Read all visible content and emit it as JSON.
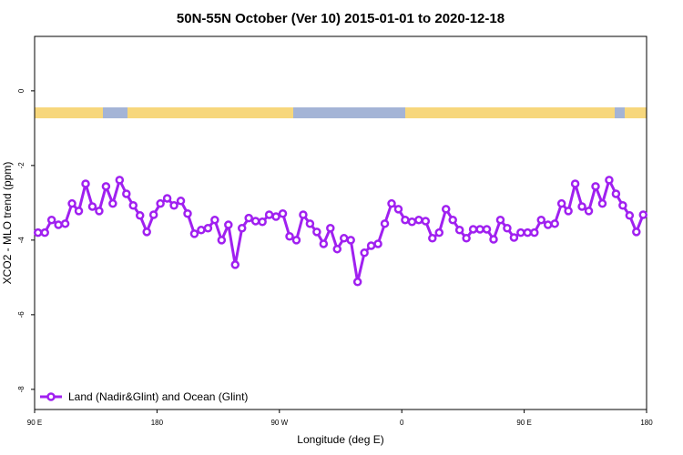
{
  "chart_data": {
    "type": "line",
    "title": "50N-55N October (Ver 10)   2015-01-01 to 2020-12-18",
    "x_label": "Longitude (deg E)",
    "y_label": "XCO2 - MLO trend (ppm)",
    "x": [
      92.5,
      97.5,
      102.5,
      107.5,
      112.5,
      117.5,
      122.5,
      127.5,
      132.5,
      137.5,
      142.5,
      147.5,
      152.5,
      157.5,
      162.5,
      167.5,
      172.5,
      177.5,
      182.5,
      187.5,
      192.5,
      197.5,
      202.5,
      207.5,
      212.5,
      217.5,
      222.5,
      227.5,
      232.5,
      237.5,
      242.5,
      247.5,
      252.5,
      257.5,
      262.5,
      267.5,
      272.5,
      277.5,
      282.5,
      287.5,
      292.5,
      297.5,
      302.5,
      307.5,
      312.5,
      317.5,
      322.5,
      327.5,
      332.5,
      337.5,
      342.5,
      347.5,
      352.5,
      357.5,
      362.5,
      367.5,
      372.5,
      377.5,
      382.5,
      387.5,
      392.5,
      397.5,
      402.5,
      407.5,
      412.5,
      417.5,
      422.5,
      427.5,
      432.5,
      437.5,
      442.5,
      447.5,
      452.5,
      457.5,
      462.5,
      467.5,
      472.5,
      477.5,
      482.5,
      487.5,
      492.5,
      497.5,
      502.5,
      507.5,
      512.5,
      517.5,
      522.5,
      527.5,
      532.5,
      537.5
    ],
    "series": [
      {
        "name": "Land (Nadir&Glint) and Ocean (Glint)",
        "color": "#a020f0",
        "values": [
          -3.8,
          -3.8,
          -3.46,
          -3.59,
          -3.56,
          -3.02,
          -3.22,
          -2.49,
          -3.1,
          -3.22,
          -2.56,
          -3.02,
          -2.39,
          -2.76,
          -3.07,
          -3.34,
          -3.78,
          -3.32,
          -3.02,
          -2.88,
          -3.07,
          -2.95,
          -3.29,
          -3.83,
          -3.73,
          -3.68,
          -3.46,
          -4.0,
          -3.59,
          -4.66,
          -3.68,
          -3.41,
          -3.49,
          -3.51,
          -3.32,
          -3.37,
          -3.29,
          -3.9,
          -4.0,
          -3.32,
          -3.56,
          -3.78,
          -4.1,
          -3.68,
          -4.24,
          -3.95,
          -4.0,
          -5.12,
          -4.34,
          -4.15,
          -4.1,
          -3.56,
          -3.02,
          -3.17,
          -3.46,
          -3.51,
          -3.46,
          -3.49,
          -3.95,
          -3.8,
          -3.17,
          -3.46,
          -3.73,
          -3.95,
          -3.71,
          -3.71,
          -3.71,
          -3.98,
          -3.46,
          -3.68,
          -3.93,
          -3.8,
          -3.8,
          -3.8,
          -3.46,
          -3.59,
          -3.56,
          -3.02,
          -3.22,
          -2.49,
          -3.1,
          -3.22,
          -2.56,
          -3.02,
          -2.39,
          -2.76,
          -3.07,
          -3.34,
          -3.78,
          -3.32
        ]
      }
    ],
    "xlim": [
      90,
      540
    ],
    "xticks": [
      {
        "value": 90,
        "label": "90 E"
      },
      180,
      {
        "value": 270,
        "label": "90 W"
      },
      {
        "value": 360,
        "label": "0"
      },
      {
        "value": 450,
        "label": "90 E"
      },
      {
        "value": 540,
        "label": "180"
      }
    ],
    "ylim": [
      -8.54,
      1.46
    ],
    "yticks": [
      0,
      -2,
      -4,
      -6,
      -8
    ],
    "legend": "bottom-left"
  }
}
